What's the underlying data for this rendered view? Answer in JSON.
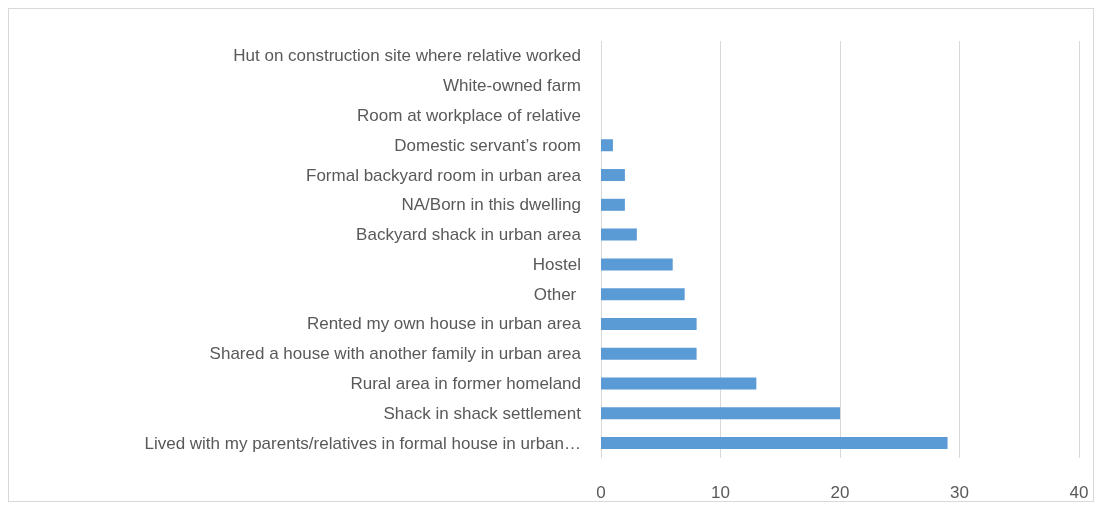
{
  "chart_data": {
    "type": "bar",
    "orientation": "horizontal",
    "categories": [
      "Hut on construction site where relative worked",
      "White-owned farm",
      "Room at workplace of relative",
      "Domestic servant’s room",
      "Formal backyard room in urban area",
      "NA/Born in this dwelling",
      "Backyard shack in urban area",
      "Hostel",
      "Other ",
      "Rented my own house in urban area",
      "Shared a house with another family in urban area",
      "Rural area in former homeland",
      "Shack in shack settlement",
      "Lived with my parents/relatives in formal house in urban…"
    ],
    "values": [
      0,
      0,
      0,
      1,
      2,
      2,
      3,
      6,
      7,
      8,
      8,
      13,
      20,
      29
    ],
    "color": "#5b9bd5",
    "xlim": [
      0,
      40
    ],
    "xticks": [
      0,
      10,
      20,
      30,
      40
    ],
    "grid": "x"
  }
}
